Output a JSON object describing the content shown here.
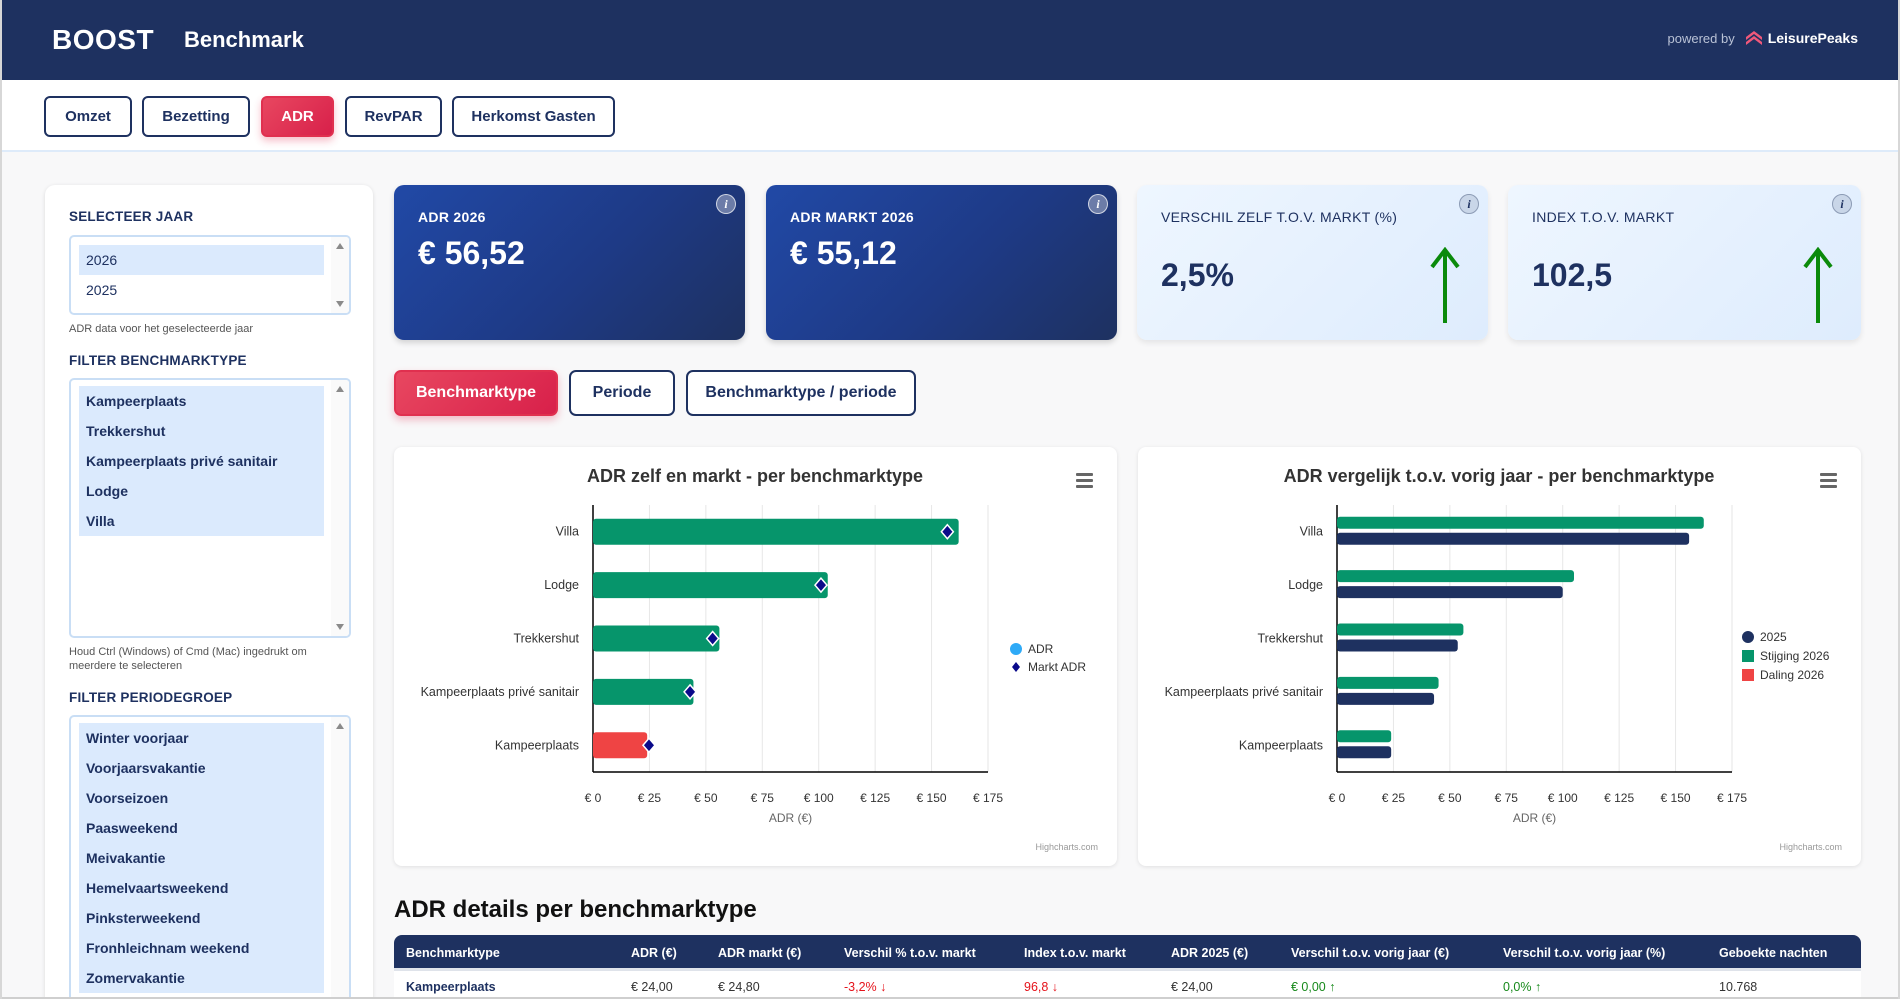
{
  "header": {
    "brand": "BOOST",
    "title": "Benchmark",
    "powered_by": "powered by",
    "partner": "LeisurePeaks",
    "colors": {
      "navy": "#1e3160",
      "accent": "#e0304f",
      "positive": "#17891b",
      "negative": "#e5131b"
    }
  },
  "nav": {
    "tabs": [
      {
        "label": "Omzet",
        "active": false
      },
      {
        "label": "Bezetting",
        "active": false
      },
      {
        "label": "ADR",
        "active": true
      },
      {
        "label": "RevPAR",
        "active": false
      },
      {
        "label": "Herkomst Gasten",
        "active": false
      }
    ]
  },
  "sidebar": {
    "year": {
      "label": "SELECTEER JAAR",
      "options": [
        {
          "label": "2026",
          "selected": true
        },
        {
          "label": "2025",
          "selected": false
        }
      ],
      "hint": "ADR data voor het geselecteerde jaar"
    },
    "benchmarktype": {
      "label": "FILTER BENCHMARKTYPE",
      "options": [
        "Kampeerplaats",
        "Trekkershut",
        "Kampeerplaats privé sanitair",
        "Lodge",
        "Villa"
      ],
      "hint": "Houd Ctrl (Windows) of Cmd (Mac) ingedrukt om meerdere te selecteren"
    },
    "periodegroep": {
      "label": "FILTER PERIODEGROEP",
      "options": [
        "Winter voorjaar",
        "Voorjaarsvakantie",
        "Voorseizoen",
        "Paasweekend",
        "Meivakantie",
        "Hemelvaartsweekend",
        "Pinksterweekend",
        "Fronhleichnam weekend",
        "Zomervakantie"
      ]
    }
  },
  "kpis": [
    {
      "label": "ADR 2026",
      "value": "€ 56,52",
      "style": "dark",
      "trend": null
    },
    {
      "label": "ADR MARKT 2026",
      "value": "€ 55,12",
      "style": "dark",
      "trend": null
    },
    {
      "label": "VERSCHIL ZELF T.O.V. MARKT (%)",
      "value": "2,5%",
      "style": "light",
      "trend": "up"
    },
    {
      "label": "INDEX T.O.V. MARKT",
      "value": "102,5",
      "style": "light",
      "trend": "up"
    }
  ],
  "info_icon": "i",
  "subtabs": [
    {
      "label": "Benchmarktype",
      "active": true
    },
    {
      "label": "Periode",
      "active": false
    },
    {
      "label": "Benchmarktype / periode",
      "active": false
    }
  ],
  "chart_data": [
    {
      "type": "bar",
      "title": "ADR zelf en markt - per benchmarktype",
      "categories": [
        "Villa",
        "Lodge",
        "Trekkershut",
        "Kampeerplaats privé sanitair",
        "Kampeerplaats"
      ],
      "series": [
        {
          "name": "ADR",
          "values": [
            162,
            104,
            56,
            44.5,
            24.0
          ],
          "legend_color": "#2eaaf7",
          "bar_colors": [
            "#06956b",
            "#06956b",
            "#06956b",
            "#06956b",
            "#ef4444"
          ]
        },
        {
          "name": "Markt ADR",
          "values": [
            157,
            101,
            53,
            43,
            24.8
          ],
          "marker": "diamond",
          "color": "#0a0a8a"
        }
      ],
      "xlabel": "ADR (€)",
      "ticks": [
        "€ 0",
        "€ 25",
        "€ 50",
        "€ 75",
        "€ 100",
        "€ 125",
        "€ 150",
        "€ 175"
      ],
      "xlim": [
        0,
        175
      ],
      "grid": true,
      "legend": "right",
      "credit": "Highcharts.com"
    },
    {
      "type": "bar",
      "title": "ADR vergelijk t.o.v. vorig jaar - per benchmarktype",
      "categories": [
        "Villa",
        "Lodge",
        "Trekkershut",
        "Kampeerplaats privé sanitair",
        "Kampeerplaats"
      ],
      "series": [
        {
          "name": "2026",
          "values": [
            162.5,
            105,
            56,
            45,
            24.0
          ],
          "color": "#06956b"
        },
        {
          "name": "2025",
          "values": [
            156,
            100,
            53.5,
            43,
            24.0
          ],
          "color": "#1e3160"
        }
      ],
      "legend_items": [
        {
          "name": "2025",
          "color": "#1e3160",
          "symbol": "circle"
        },
        {
          "name": "Stijging 2026",
          "color": "#06956b",
          "symbol": "square"
        },
        {
          "name": "Daling 2026",
          "color": "#ef4444",
          "symbol": "square"
        }
      ],
      "xlabel": "ADR (€)",
      "ticks": [
        "€ 0",
        "€ 25",
        "€ 50",
        "€ 75",
        "€ 100",
        "€ 125",
        "€ 150",
        "€ 175"
      ],
      "xlim": [
        0,
        175
      ],
      "grid": true,
      "legend": "right",
      "credit": "Highcharts.com"
    }
  ],
  "table": {
    "title": "ADR details per benchmarktype",
    "columns": [
      "Benchmarktype",
      "ADR (€)",
      "ADR markt (€)",
      "Verschil % t.o.v. markt",
      "Index t.o.v. markt",
      "ADR 2025 (€)",
      "Verschil t.o.v. vorig jaar (€)",
      "Verschil t.o.v. vorig jaar (%)",
      "Geboekte nachten"
    ],
    "rows": [
      [
        "Kampeerplaats",
        "€ 24,00",
        "€ 24,80",
        "-3,2% ↓",
        "96,8 ↓",
        "€ 24,00",
        "€ 0,00 ↑",
        "0,0% ↑",
        "10.768"
      ]
    ]
  }
}
